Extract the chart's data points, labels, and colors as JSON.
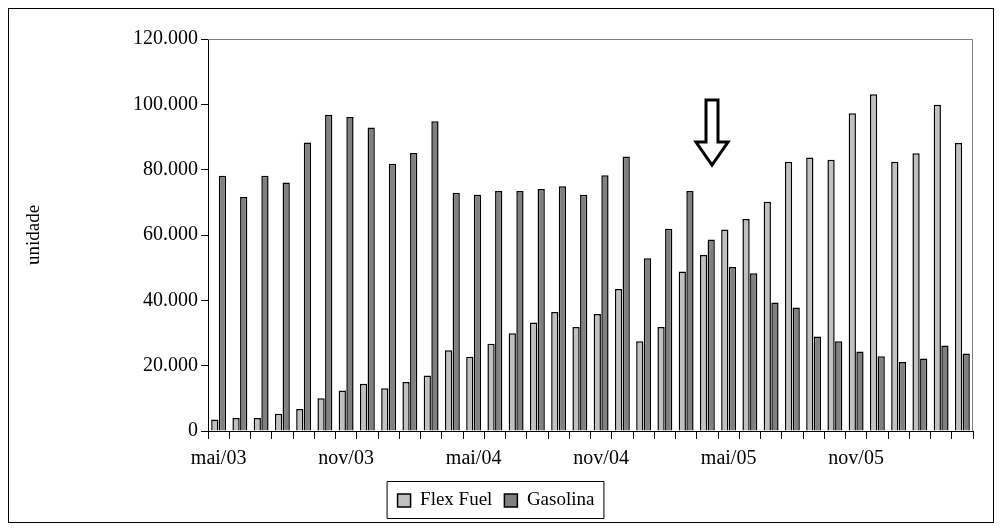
{
  "chart_data": {
    "type": "bar",
    "ylabel": "unidade",
    "categories": [
      "mai/03",
      null,
      null,
      null,
      null,
      null,
      "nov/03",
      null,
      null,
      null,
      null,
      null,
      "mai/04",
      null,
      null,
      null,
      null,
      null,
      "nov/04",
      null,
      null,
      null,
      null,
      null,
      "mai/05",
      null,
      null,
      null,
      null,
      null,
      "nov/05",
      null,
      null,
      null,
      null,
      null
    ],
    "series": [
      {
        "name": "Flex Fuel",
        "color": "#c0c0c0",
        "values": [
          3500,
          4000,
          4000,
          5300,
          6700,
          10000,
          12400,
          14500,
          13100,
          15000,
          17000,
          24700,
          22700,
          26700,
          29900,
          33200,
          36400,
          31800,
          35800,
          43500,
          27500,
          31800,
          48800,
          53900,
          61700,
          64900,
          70200,
          82400,
          83700,
          83000,
          97300,
          103100,
          82400,
          85000,
          99900,
          88200
        ]
      },
      {
        "name": "Gasolina",
        "color": "#808080",
        "values": [
          78100,
          71600,
          78100,
          76100,
          88300,
          96800,
          96100,
          92900,
          81800,
          85100,
          94800,
          72900,
          72300,
          73500,
          73500,
          74100,
          74900,
          72300,
          78300,
          84000,
          52900,
          61900,
          73500,
          58600,
          50200,
          48300,
          39300,
          37800,
          28900,
          27500,
          24300,
          22900,
          21100,
          22200,
          26200,
          23700
        ]
      }
    ],
    "ylim": [
      0,
      120000
    ],
    "yticks": [
      0,
      {
        "value": 20000,
        "label": "20.000"
      },
      {
        "value": 40000,
        "label": "40.000"
      },
      {
        "value": 60000,
        "label": "60.000"
      },
      {
        "value": 80000,
        "label": "80.000"
      },
      {
        "value": 100000,
        "label": "100.000"
      },
      {
        "value": 120000,
        "label": "120.000"
      }
    ],
    "grid": false,
    "legend": "bottom"
  }
}
